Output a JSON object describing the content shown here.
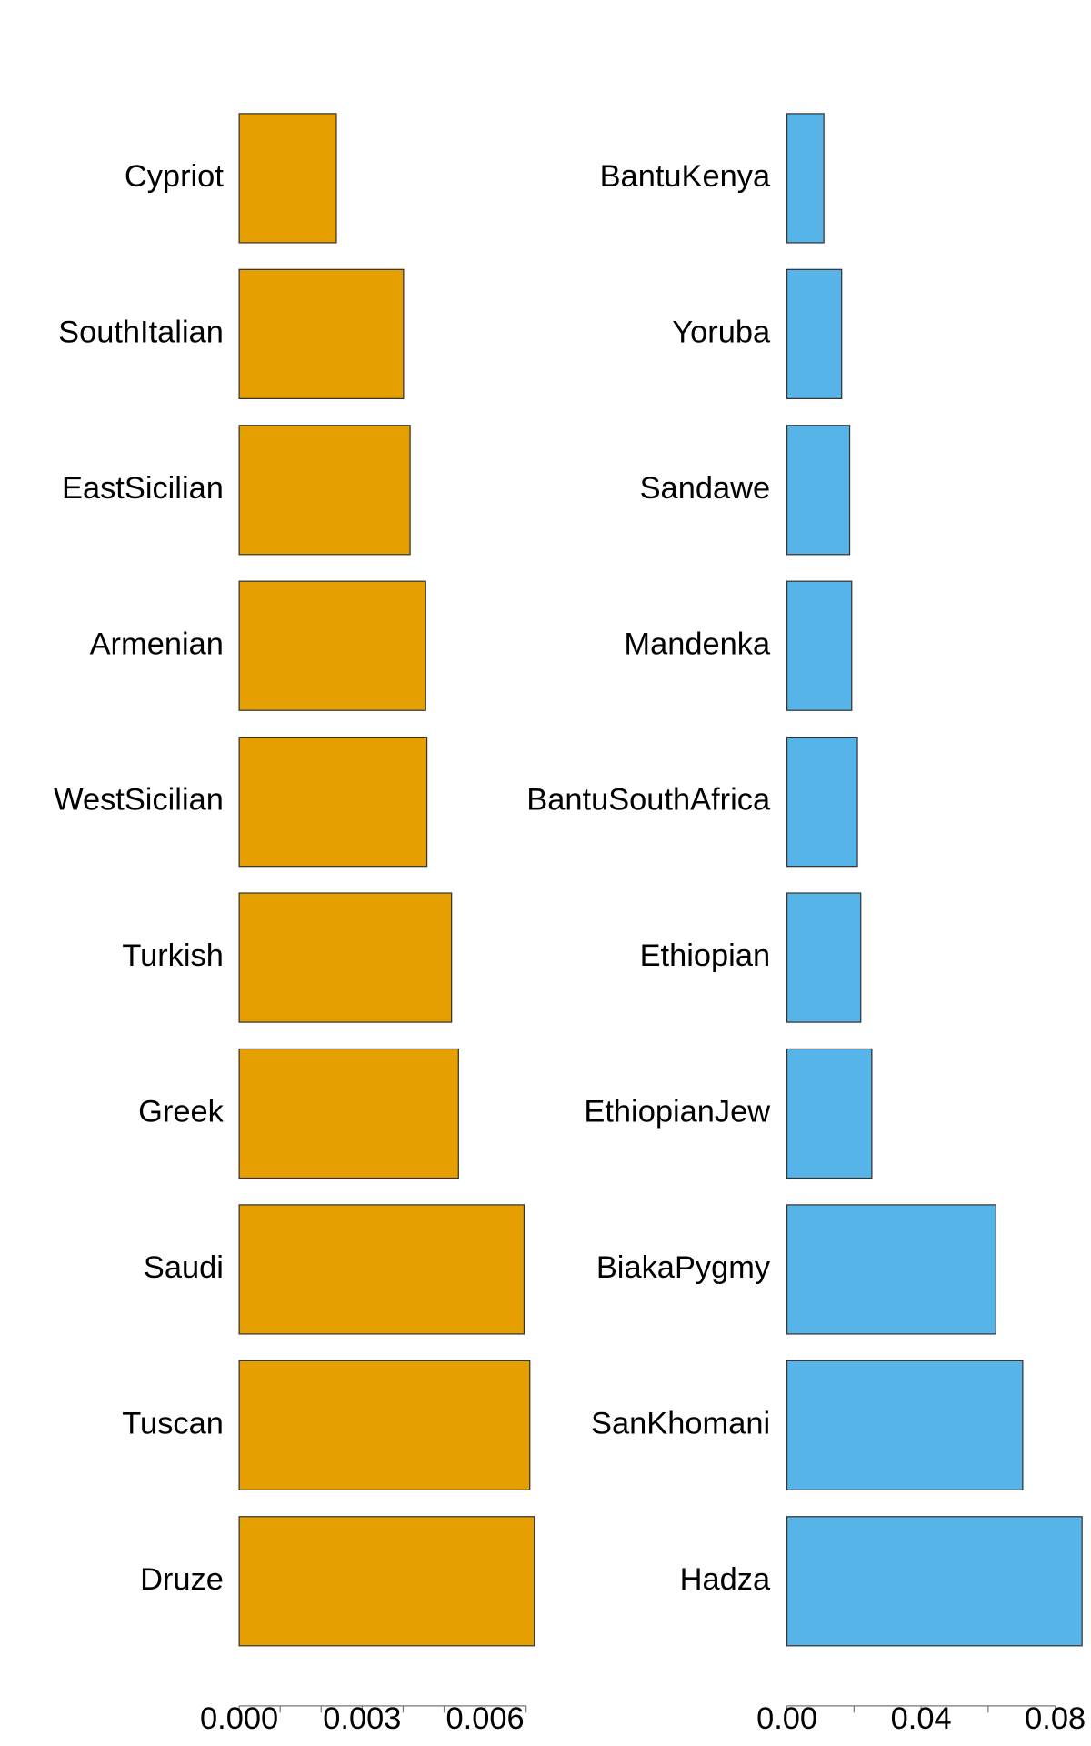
{
  "chart_data": [
    {
      "type": "bar",
      "orientation": "horizontal",
      "color": "#E69F00",
      "categories": [
        "Cypriot",
        "SouthItalian",
        "EastSicilian",
        "Armenian",
        "WestSicilian",
        "Turkish",
        "Greek",
        "Saudi",
        "Tuscan",
        "Druze"
      ],
      "values": [
        0.00237,
        0.00401,
        0.00417,
        0.00455,
        0.00458,
        0.00518,
        0.00535,
        0.00695,
        0.00709,
        0.0072
      ],
      "xlim": [
        0,
        0.0072
      ],
      "xticks": [
        {
          "value": 0,
          "label": "0.000"
        },
        0.003,
        0.006
      ],
      "minor_xticks": [
        0.001,
        0.002,
        0.004,
        0.005,
        0.007
      ]
    },
    {
      "type": "bar",
      "orientation": "horizontal",
      "color": "#56B4E9",
      "categories": [
        "BantuKenya",
        "Yoruba",
        "Sandawe",
        "Mandenka",
        "BantuSouthAfrica",
        "Ethiopian",
        "EthiopianJew",
        "BiakaPygmy",
        "SanKhomani",
        "Hadza"
      ],
      "values": [
        0.011,
        0.0163,
        0.0187,
        0.0193,
        0.021,
        0.022,
        0.0253,
        0.0623,
        0.0703,
        0.088
      ],
      "xlim": [
        0,
        0.088
      ],
      "xticks": [
        {
          "value": 0,
          "label": "0.00"
        },
        0.04,
        0.08
      ],
      "minor_xticks": [
        0.02,
        0.06
      ]
    }
  ]
}
